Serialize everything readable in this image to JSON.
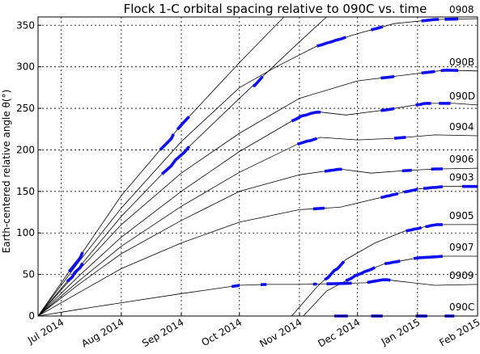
{
  "chart_data": {
    "type": "line",
    "title": "Flock 1-C orbital spacing relative to 090C vs. time",
    "xlabel": "",
    "ylabel": "Earth-centered relative angle θ(°)",
    "x_ticks": [
      "Jul 2014",
      "Aug 2014",
      "Sep 2014",
      "Oct 2014",
      "Nov 2014",
      "Dec 2014",
      "Jan 2015",
      "Feb 2015"
    ],
    "xlim": [
      "2014-06-19",
      "2015-02-01"
    ],
    "ylim": [
      0,
      360
    ],
    "y_ticks": [
      0,
      50,
      100,
      150,
      200,
      250,
      300,
      350
    ],
    "grid": true,
    "highlight_color": "#1010ee",
    "series": [
      {
        "name": "0908",
        "points": [
          [
            "2014-06-19",
            0
          ],
          [
            "2014-07-10",
            65
          ],
          [
            "2014-08-01",
            130
          ],
          [
            "2014-09-01",
            210
          ],
          [
            "2014-10-01",
            275
          ],
          [
            "2014-10-20",
            300
          ],
          [
            "2014-11-10",
            325
          ],
          [
            "2014-12-01",
            340
          ],
          [
            "2014-12-20",
            352
          ],
          [
            "2015-01-10",
            357
          ],
          [
            "2015-02-01",
            358
          ]
        ],
        "highlights": [
          [
            "2014-11-10",
            "2014-11-25"
          ],
          [
            "2014-12-08",
            "2014-12-14"
          ],
          [
            "2015-01-03",
            "2015-01-12"
          ],
          [
            "2015-01-15",
            "2015-01-22"
          ]
        ]
      },
      {
        "name": "090B",
        "points": [
          [
            "2014-06-19",
            0
          ],
          [
            "2014-07-10",
            55
          ],
          [
            "2014-08-01",
            110
          ],
          [
            "2014-09-01",
            172
          ],
          [
            "2014-10-01",
            220
          ],
          [
            "2014-11-01",
            262
          ],
          [
            "2014-12-01",
            283
          ],
          [
            "2015-01-01",
            292
          ],
          [
            "2015-01-15",
            296
          ],
          [
            "2015-02-01",
            295
          ]
        ],
        "highlights": [
          [
            "2014-12-13",
            "2014-12-20"
          ],
          [
            "2015-01-03",
            "2015-01-10"
          ],
          [
            "2015-01-13",
            "2015-01-22"
          ]
        ]
      },
      {
        "name": "090D",
        "points": [
          [
            "2014-06-19",
            0
          ],
          [
            "2014-07-10",
            48
          ],
          [
            "2014-08-01",
            95
          ],
          [
            "2014-09-01",
            150
          ],
          [
            "2014-10-01",
            198
          ],
          [
            "2014-11-01",
            240
          ],
          [
            "2014-11-10",
            246
          ],
          [
            "2014-11-25",
            242
          ],
          [
            "2014-12-15",
            248
          ],
          [
            "2015-01-05",
            256
          ],
          [
            "2015-01-20",
            256
          ],
          [
            "2015-02-01",
            254
          ]
        ],
        "highlights": [
          [
            "2014-10-28",
            "2014-11-12"
          ],
          [
            "2014-12-13",
            "2014-12-20"
          ],
          [
            "2014-12-31",
            "2015-01-08"
          ],
          [
            "2015-01-12",
            "2015-01-18"
          ]
        ]
      },
      {
        "name": "0904",
        "points": [
          [
            "2014-06-19",
            0
          ],
          [
            "2014-07-10",
            42
          ],
          [
            "2014-08-01",
            84
          ],
          [
            "2014-09-01",
            132
          ],
          [
            "2014-10-01",
            173
          ],
          [
            "2014-11-01",
            208
          ],
          [
            "2014-11-12",
            215
          ],
          [
            "2014-12-01",
            212
          ],
          [
            "2014-12-20",
            214
          ],
          [
            "2015-01-10",
            218
          ],
          [
            "2015-02-01",
            217
          ]
        ],
        "highlights": [
          [
            "2014-10-31",
            "2014-11-10"
          ],
          [
            "2014-12-20",
            "2014-12-26"
          ]
        ]
      },
      {
        "name": "0906",
        "points": [
          [
            "2014-06-19",
            0
          ],
          [
            "2014-07-10",
            38
          ],
          [
            "2014-08-01",
            75
          ],
          [
            "2014-09-01",
            115
          ],
          [
            "2014-10-01",
            150
          ],
          [
            "2014-11-01",
            170
          ],
          [
            "2014-11-22",
            177
          ],
          [
            "2014-12-08",
            172
          ],
          [
            "2014-12-25",
            175
          ],
          [
            "2015-01-10",
            177
          ],
          [
            "2015-02-01",
            178
          ]
        ],
        "highlights": [
          [
            "2014-11-14",
            "2014-11-23"
          ],
          [
            "2014-12-24",
            "2014-12-29"
          ],
          [
            "2015-01-08",
            "2015-01-14"
          ]
        ]
      },
      {
        "name": "0903",
        "points": [
          [
            "2014-06-19",
            0
          ],
          [
            "2014-07-10",
            28
          ],
          [
            "2014-08-01",
            57
          ],
          [
            "2014-09-01",
            88
          ],
          [
            "2014-10-01",
            113
          ],
          [
            "2014-11-01",
            128
          ],
          [
            "2014-11-22",
            131
          ],
          [
            "2014-12-10",
            141
          ],
          [
            "2015-01-01",
            153
          ],
          [
            "2015-01-15",
            156
          ],
          [
            "2015-02-01",
            156
          ]
        ],
        "highlights": [
          [
            "2014-11-08",
            "2014-11-14"
          ],
          [
            "2014-12-13",
            "2014-12-22"
          ],
          [
            "2014-12-25",
            "2015-01-01"
          ],
          [
            "2015-01-04",
            "2015-01-14"
          ],
          [
            "2015-01-24",
            "2015-02-01"
          ]
        ]
      },
      {
        "name": "0905",
        "points": [
          [
            "2014-10-28",
            0
          ],
          [
            "2014-11-10",
            35
          ],
          [
            "2014-11-25",
            68
          ],
          [
            "2014-12-10",
            88
          ],
          [
            "2014-12-25",
            102
          ],
          [
            "2015-01-10",
            110
          ],
          [
            "2015-02-01",
            110
          ]
        ],
        "highlights": [
          [
            "2014-11-14",
            "2014-11-24"
          ],
          [
            "2014-12-26",
            "2015-01-03"
          ],
          [
            "2015-01-05",
            "2015-01-14"
          ]
        ]
      },
      {
        "name": "0907",
        "points": [
          [
            "2014-11-03",
            0
          ],
          [
            "2014-11-15",
            30
          ],
          [
            "2014-12-01",
            50
          ],
          [
            "2014-12-15",
            63
          ],
          [
            "2015-01-01",
            70
          ],
          [
            "2015-01-15",
            72
          ],
          [
            "2015-02-01",
            72
          ]
        ],
        "highlights": [
          [
            "2014-11-25",
            "2014-12-10"
          ],
          [
            "2014-12-15",
            "2014-12-23"
          ],
          [
            "2014-12-30",
            "2015-01-14"
          ]
        ]
      },
      {
        "name": "0909",
        "points": [
          [
            "2014-06-19",
            0
          ],
          [
            "2014-07-10",
            8
          ],
          [
            "2014-08-01",
            16
          ],
          [
            "2014-09-01",
            27
          ],
          [
            "2014-10-01",
            37
          ],
          [
            "2014-10-15",
            38
          ],
          [
            "2014-11-01",
            38
          ],
          [
            "2014-11-20",
            39
          ],
          [
            "2014-12-05",
            40
          ],
          [
            "2014-12-15",
            44
          ],
          [
            "2014-12-22",
            42
          ],
          [
            "2015-01-10",
            37
          ],
          [
            "2015-02-01",
            38
          ]
        ],
        "highlights": [
          [
            "2014-09-27",
            "2014-10-01"
          ],
          [
            "2014-10-12",
            "2014-10-15"
          ],
          [
            "2014-11-08",
            "2014-11-10"
          ],
          [
            "2014-11-15",
            "2014-11-28"
          ],
          [
            "2014-12-06",
            "2014-12-18"
          ]
        ]
      },
      {
        "name": "090C",
        "points": [
          [
            "2014-06-19",
            0
          ],
          [
            "2015-02-01",
            0
          ]
        ],
        "highlights": [
          [
            "2014-11-19",
            "2014-11-26"
          ],
          [
            "2014-12-08",
            "2014-12-14"
          ],
          [
            "2014-12-31",
            "2015-01-06"
          ],
          [
            "2015-01-15",
            "2015-01-20"
          ]
        ]
      },
      {
        "name": "",
        "points": [
          [
            "2014-06-19",
            0
          ],
          [
            "2014-07-10",
            70
          ],
          [
            "2014-08-01",
            145
          ],
          [
            "2014-09-01",
            230
          ],
          [
            "2014-10-01",
            305
          ],
          [
            "2014-10-24",
            360
          ]
        ],
        "highlights": [
          [
            "2014-07-05",
            "2014-07-12"
          ],
          [
            "2014-08-21",
            "2014-08-28"
          ],
          [
            "2014-08-30",
            "2014-09-05"
          ]
        ]
      },
      {
        "name": "",
        "points": [
          [
            "2014-06-19",
            0
          ],
          [
            "2014-07-10",
            58
          ],
          [
            "2014-08-01",
            120
          ],
          [
            "2014-09-01",
            195
          ],
          [
            "2014-10-01",
            262
          ],
          [
            "2014-11-01",
            330
          ],
          [
            "2014-11-15",
            360
          ]
        ],
        "highlights": [
          [
            "2014-07-04",
            "2014-07-12"
          ],
          [
            "2014-08-22",
            "2014-09-05"
          ],
          [
            "2014-10-08",
            "2014-10-13"
          ]
        ]
      }
    ]
  }
}
